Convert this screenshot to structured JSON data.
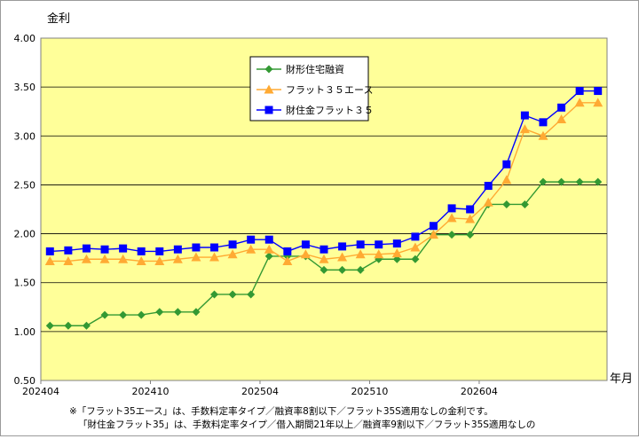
{
  "chart_data": {
    "type": "line",
    "ylabel": "金利",
    "xlabel": "年月",
    "ylim": [
      0.5,
      4.0
    ],
    "yticks": [
      "0.50",
      "1.00",
      "1.50",
      "2.00",
      "2.50",
      "3.00",
      "3.50",
      "4.00"
    ],
    "xtick_labels": [
      "202404",
      "202410",
      "202504",
      "202510",
      "202604"
    ],
    "grid": "horizontal",
    "legend_position": "top-center",
    "background": "#ffff99",
    "categories": [
      "202404",
      "202405",
      "202406",
      "202407",
      "202408",
      "202409",
      "202410",
      "202411",
      "202412",
      "202501",
      "202502",
      "202503",
      "202504",
      "202505",
      "202506",
      "202507",
      "202508",
      "202509",
      "202510",
      "202511",
      "202512",
      "202601",
      "202602",
      "202603",
      "202604",
      "202605",
      "202606",
      "202607",
      "202608",
      "202609",
      "202610"
    ],
    "series": [
      {
        "name": "財形住宅融資",
        "color": "#339933",
        "marker": "diamond",
        "values": [
          1.06,
          1.06,
          1.06,
          1.17,
          1.17,
          1.17,
          1.2,
          1.2,
          1.2,
          1.38,
          1.38,
          1.38,
          1.77,
          1.77,
          1.77,
          1.63,
          1.63,
          1.63,
          1.74,
          1.74,
          1.74,
          1.99,
          1.99,
          1.99,
          2.3,
          2.3,
          2.3,
          2.53,
          2.53,
          2.53,
          2.53
        ]
      },
      {
        "name": "フラット３５エース",
        "color": "#ffaa33",
        "marker": "triangle",
        "values": [
          1.72,
          1.72,
          1.74,
          1.74,
          1.74,
          1.72,
          1.72,
          1.74,
          1.76,
          1.76,
          1.79,
          1.84,
          1.84,
          1.72,
          1.79,
          1.74,
          1.76,
          1.79,
          1.79,
          1.8,
          1.86,
          1.99,
          2.16,
          2.15,
          2.32,
          2.55,
          3.07,
          3.0,
          3.17,
          3.34,
          3.34
        ]
      },
      {
        "name": "財住金フラット３５",
        "color": "#0000ff",
        "marker": "square",
        "values": [
          1.82,
          1.83,
          1.85,
          1.84,
          1.85,
          1.82,
          1.82,
          1.84,
          1.86,
          1.86,
          1.89,
          1.94,
          1.94,
          1.82,
          1.89,
          1.84,
          1.87,
          1.89,
          1.89,
          1.9,
          1.97,
          2.08,
          2.26,
          2.25,
          2.49,
          2.71,
          3.21,
          3.14,
          3.29,
          3.46,
          3.46
        ]
      }
    ]
  },
  "notes": {
    "line1": "※「フラット35エース」は、手数料定率タイプ／融資率8割以下／フラット35S適用なしの金利です。",
    "line2": "「財住金フラット35」は、手数料定率タイプ／借入期間21年以上／融資率9割以下／フラット35S適用なしの"
  }
}
